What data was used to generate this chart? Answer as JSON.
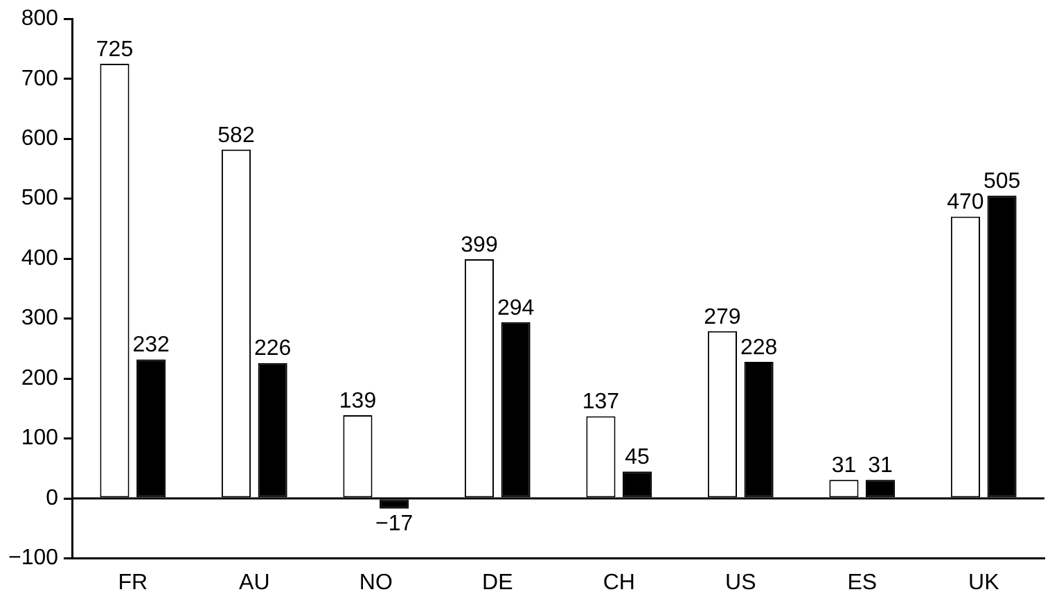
{
  "chart_data": {
    "type": "bar",
    "categories": [
      "FR",
      "AU",
      "NO",
      "DE",
      "CH",
      "US",
      "ES",
      "UK"
    ],
    "series": [
      {
        "color": "#ffffff",
        "values": [
          725,
          582,
          139,
          399,
          137,
          279,
          31,
          470
        ],
        "value_labels": [
          "725",
          "582",
          "139",
          "399",
          "137",
          "279",
          "31",
          "470"
        ]
      },
      {
        "color": "#000000",
        "values": [
          232,
          226,
          -17,
          294,
          45,
          228,
          31,
          505
        ],
        "value_labels": [
          "232",
          "226",
          "−17",
          "294",
          "45",
          "228",
          "31",
          "505"
        ]
      }
    ],
    "ylim": [
      -100,
      800
    ],
    "yticks": [
      {
        "value": -100,
        "label": "−100"
      },
      0,
      100,
      200,
      300,
      400,
      500,
      600,
      700,
      800
    ],
    "ref_lines": [
      {
        "axis": "y",
        "value": 0,
        "color": "#000000"
      }
    ],
    "grid": false,
    "legend": false
  }
}
